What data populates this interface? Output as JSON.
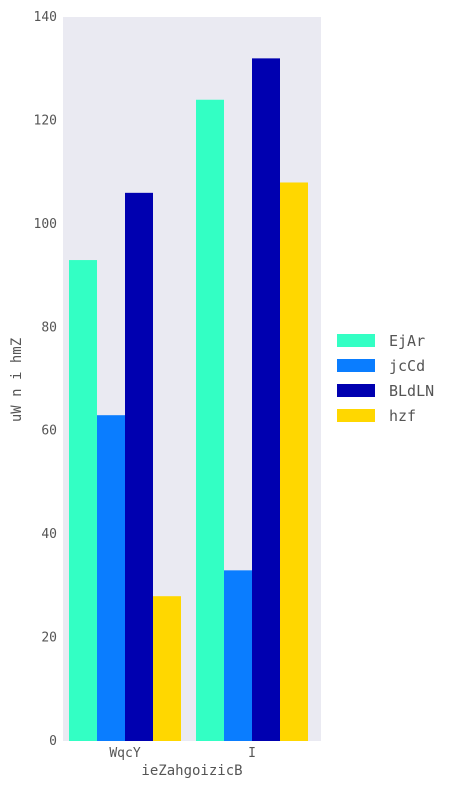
{
  "chart_data": {
    "type": "bar",
    "categories": [
      "WqcY",
      "I"
    ],
    "series": [
      {
        "name": "EjAr",
        "values": [
          93,
          124
        ],
        "color": "#33ffc4"
      },
      {
        "name": "jcCd",
        "values": [
          63,
          33
        ],
        "color": "#0a7dff"
      },
      {
        "name": "BLdLN",
        "values": [
          106,
          132
        ],
        "color": "#0000b0"
      },
      {
        "name": "hzf",
        "values": [
          28,
          108
        ],
        "color": "#ffd700"
      }
    ],
    "title": "",
    "xlabel": "ieZahgoizicB",
    "ylabel": "uW n i hmZ",
    "ylim": [
      0,
      140
    ],
    "yticks": [
      "0",
      "20",
      "40",
      "60",
      "80",
      "100",
      "120",
      "140"
    ],
    "grid": false,
    "legend": "right",
    "background": "#eaeaf2"
  }
}
